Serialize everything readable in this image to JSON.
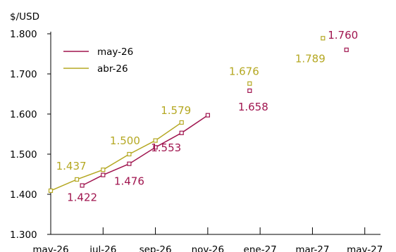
{
  "chart_data": {
    "type": "line",
    "ylabel": "$/USD",
    "ylim": [
      1.3,
      1.8
    ],
    "yticks": [
      "1.300",
      "1.400",
      "1.500",
      "1.600",
      "1.700",
      "1.800"
    ],
    "xticks": [
      "may-26",
      "jul-26",
      "sep-26",
      "nov-26",
      "ene-27",
      "mar-27",
      "may-27"
    ],
    "x_range_months": [
      0,
      12.6
    ],
    "legend_position": "top-left",
    "grid": false,
    "series": [
      {
        "name": "may-26",
        "color": "#a0154f",
        "points": [
          {
            "m": 1.2,
            "y": 1.422
          },
          {
            "m": 2.0,
            "y": 1.448
          },
          {
            "m": 3.0,
            "y": 1.476
          },
          {
            "m": 4.0,
            "y": 1.517
          },
          {
            "m": 5.0,
            "y": 1.553
          },
          {
            "m": 6.0,
            "y": 1.597
          },
          {
            "m": 7.6,
            "y": 1.658
          },
          {
            "m": 11.3,
            "y": 1.76
          }
        ],
        "connected_count": 6,
        "labels": [
          {
            "i": 0,
            "text": "1.422",
            "dx": 0,
            "dy": 22
          },
          {
            "i": 2,
            "text": "1.476",
            "dx": 0,
            "dy": 30
          },
          {
            "i": 4,
            "text": "1.553",
            "dx": -22,
            "dy": 26
          },
          {
            "i": 6,
            "text": "1.658",
            "dx": 5,
            "dy": 28
          },
          {
            "i": 7,
            "text": "1.760",
            "dx": -5,
            "dy": -16
          }
        ]
      },
      {
        "name": "abr-26",
        "color": "#b5a823",
        "points": [
          {
            "m": 0.0,
            "y": 1.409
          },
          {
            "m": 1.0,
            "y": 1.437
          },
          {
            "m": 2.0,
            "y": 1.461
          },
          {
            "m": 3.0,
            "y": 1.5
          },
          {
            "m": 4.0,
            "y": 1.534
          },
          {
            "m": 5.0,
            "y": 1.579
          },
          {
            "m": 7.6,
            "y": 1.676
          },
          {
            "m": 10.4,
            "y": 1.789
          }
        ],
        "connected_count": 6,
        "labels": [
          {
            "i": 1,
            "text": "1.437",
            "dx": -8,
            "dy": -14
          },
          {
            "i": 3,
            "text": "1.500",
            "dx": -6,
            "dy": -14
          },
          {
            "i": 5,
            "text": "1.579",
            "dx": -8,
            "dy": -12
          },
          {
            "i": 6,
            "text": "1.676",
            "dx": -8,
            "dy": -12
          },
          {
            "i": 7,
            "text": "1.789",
            "dx": -18,
            "dy": 34
          }
        ]
      }
    ]
  }
}
